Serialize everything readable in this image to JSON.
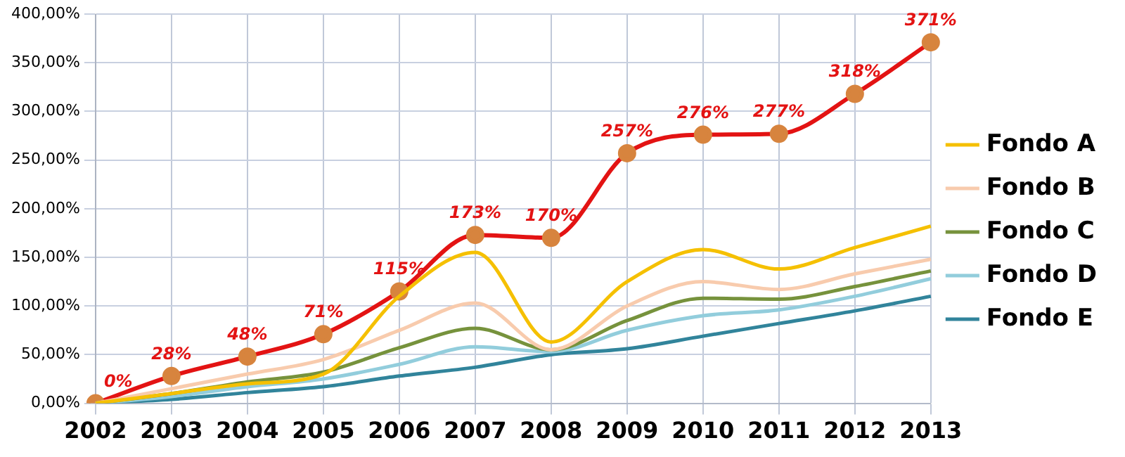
{
  "chart_data": {
    "type": "line",
    "categories": [
      "2002",
      "2003",
      "2004",
      "2005",
      "2006",
      "2007",
      "2008",
      "2009",
      "2010",
      "2011",
      "2012",
      "2013"
    ],
    "series": [
      {
        "name": "Fondo A",
        "color": "#f5c000",
        "values": [
          0,
          10,
          20,
          30,
          110,
          155,
          63,
          125,
          158,
          138,
          160,
          182
        ]
      },
      {
        "name": "Fondo B",
        "color": "#f8cbad",
        "values": [
          0,
          15,
          30,
          45,
          75,
          103,
          55,
          100,
          125,
          117,
          133,
          148
        ]
      },
      {
        "name": "Fondo C",
        "color": "#76923c",
        "values": [
          0,
          10,
          22,
          32,
          57,
          77,
          55,
          85,
          108,
          107,
          120,
          136
        ]
      },
      {
        "name": "Fondo D",
        "color": "#92cddc",
        "values": [
          0,
          7,
          17,
          25,
          40,
          58,
          53,
          75,
          90,
          96,
          110,
          128
        ]
      },
      {
        "name": "Fondo E",
        "color": "#31849b",
        "values": [
          0,
          4,
          11,
          17,
          28,
          37,
          50,
          56,
          69,
          82,
          95,
          110
        ]
      },
      {
        "color": "#e31313",
        "marker": "circle",
        "values": [
          0,
          28,
          48,
          71,
          115,
          173,
          170,
          257,
          276,
          277,
          318,
          371
        ],
        "value_labels": [
          "0%",
          "28%",
          "48%",
          "71%",
          "115%",
          "173%",
          "170%",
          "257%",
          "276%",
          "277%",
          "318%",
          "371%"
        ]
      }
    ],
    "ylim": [
      0,
      400
    ],
    "yticks": [
      {
        "value": 0,
        "label": "0,00%"
      },
      {
        "value": 50,
        "label": "50,00%"
      },
      {
        "value": 100,
        "label": "100,00%"
      },
      {
        "value": 150,
        "label": "150,00%"
      },
      {
        "value": 200,
        "label": "200,00%"
      },
      {
        "value": 250,
        "label": "250,00%"
      },
      {
        "value": 300,
        "label": "300,00%"
      },
      {
        "value": 350,
        "label": "350,00%"
      },
      {
        "value": 400,
        "label": "400,00%"
      }
    ],
    "grid": true,
    "legend": "right",
    "marker": "none"
  }
}
